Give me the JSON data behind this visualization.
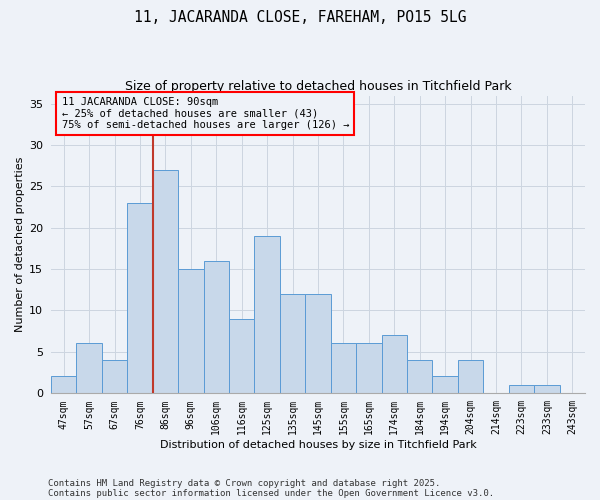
{
  "title1": "11, JACARANDA CLOSE, FAREHAM, PO15 5LG",
  "title2": "Size of property relative to detached houses in Titchfield Park",
  "xlabel": "Distribution of detached houses by size in Titchfield Park",
  "ylabel": "Number of detached properties",
  "categories": [
    "47sqm",
    "57sqm",
    "67sqm",
    "76sqm",
    "86sqm",
    "96sqm",
    "106sqm",
    "116sqm",
    "125sqm",
    "135sqm",
    "145sqm",
    "155sqm",
    "165sqm",
    "174sqm",
    "184sqm",
    "194sqm",
    "204sqm",
    "214sqm",
    "223sqm",
    "233sqm",
    "243sqm"
  ],
  "values": [
    2,
    6,
    4,
    23,
    27,
    15,
    16,
    9,
    19,
    12,
    12,
    6,
    6,
    7,
    4,
    2,
    4,
    0,
    1,
    1,
    0
  ],
  "bar_color": "#c8d8ea",
  "bar_edge_color": "#5b9bd5",
  "grid_color": "#ccd5e0",
  "background_color": "#eef2f8",
  "annotation_line1": "11 JACARANDA CLOSE: 90sqm",
  "annotation_line2": "← 25% of detached houses are smaller (43)",
  "annotation_line3": "75% of semi-detached houses are larger (126) →",
  "vline_bin_index": 4,
  "vline_color": "#c0392b",
  "ylim": [
    0,
    36
  ],
  "yticks": [
    0,
    5,
    10,
    15,
    20,
    25,
    30,
    35
  ],
  "footnote1": "Contains HM Land Registry data © Crown copyright and database right 2025.",
  "footnote2": "Contains public sector information licensed under the Open Government Licence v3.0."
}
